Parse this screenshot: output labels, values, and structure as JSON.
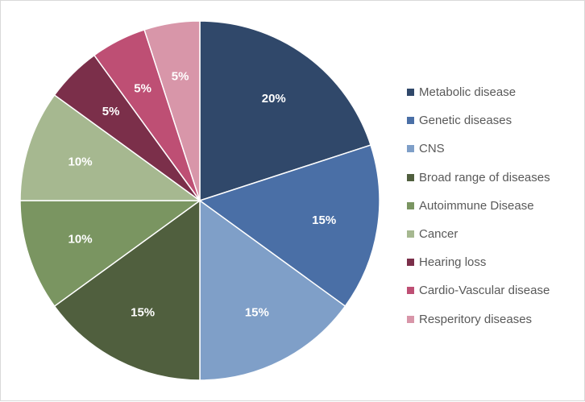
{
  "chart_data": {
    "type": "pie",
    "title": "",
    "categories": [
      "Metabolic disease",
      "Genetic diseases",
      "CNS",
      "Broad range of diseases",
      "Autoimmune Disease",
      "Cancer",
      "Hearing loss",
      "Cardio-Vascular disease",
      "Resperitory diseases"
    ],
    "values": [
      20,
      15,
      15,
      15,
      10,
      10,
      5,
      5,
      5
    ],
    "data_labels": [
      "20%",
      "15%",
      "15%",
      "15%",
      "10%",
      "10%",
      "5%",
      "5%",
      "5%"
    ],
    "colors": [
      "#30486a",
      "#4a6fa6",
      "#7f9fc8",
      "#505f3e",
      "#7a9561",
      "#a6b890",
      "#7b2f4a",
      "#be4f74",
      "#d896a9"
    ],
    "start_angle": "12 o'clock",
    "direction": "clockwise",
    "legend_position": "right"
  }
}
